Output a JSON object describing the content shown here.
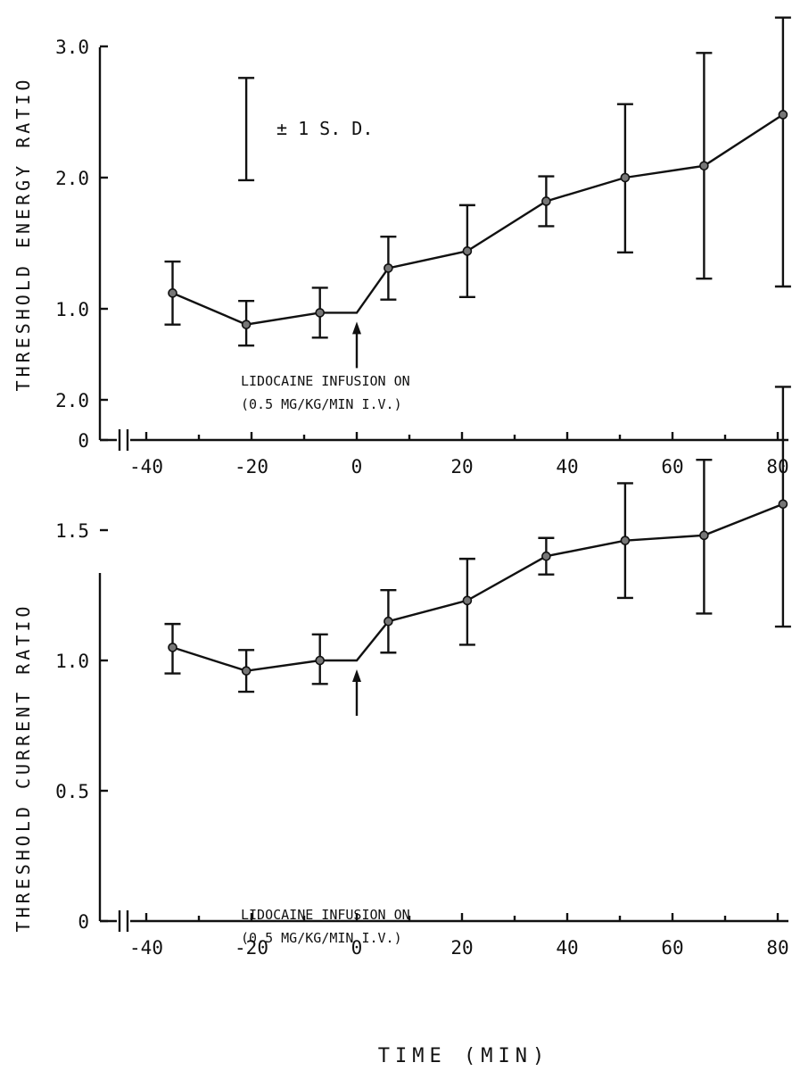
{
  "chart_data": [
    {
      "type": "line",
      "ylabel": "THRESHOLD ENERGY RATIO",
      "xlabel": "",
      "xlim": [
        -45,
        80
      ],
      "ylim": [
        0,
        3.0
      ],
      "x_ticks": [
        "-40",
        "-20",
        "0",
        "20",
        "40",
        "60",
        "80"
      ],
      "y_ticks": [
        "0",
        "1.0",
        "2.0",
        "3.0"
      ],
      "axis_break": true,
      "series": [
        {
          "x": [
            -35,
            -21,
            -7,
            0,
            6,
            21,
            36,
            51,
            66,
            81
          ],
          "y": [
            1.12,
            0.88,
            0.97,
            0.97,
            1.31,
            1.44,
            1.82,
            2.0,
            2.09,
            2.48
          ],
          "err_low": [
            0.88,
            0.72,
            0.78,
            null,
            1.07,
            1.09,
            1.63,
            1.43,
            1.23,
            1.17
          ],
          "err_high": [
            1.36,
            1.06,
            1.16,
            null,
            1.55,
            1.79,
            2.01,
            2.56,
            2.95,
            3.22
          ]
        }
      ],
      "legend": {
        "text": "± 1 S. D.",
        "bar_low": 1.98,
        "bar_high": 2.76,
        "x": -21
      },
      "annotation": {
        "line1": "LIDOCAINE INFUSION ON",
        "line2": "(0.5 MG/KG/MIN  I.V.)",
        "x": 0
      }
    },
    {
      "type": "line",
      "ylabel": "THRESHOLD CURRENT RATIO",
      "xlabel": "TIME (MIN)",
      "xlim": [
        -45,
        80
      ],
      "ylim": [
        0,
        2.0
      ],
      "x_ticks": [
        "-40",
        "-20",
        "0",
        "20",
        "40",
        "60",
        "80"
      ],
      "y_ticks": [
        "0",
        "0.5",
        "1.0",
        "1.5",
        "2.0"
      ],
      "axis_break": true,
      "series": [
        {
          "x": [
            -35,
            -21,
            -7,
            0,
            6,
            21,
            36,
            51,
            66,
            81
          ],
          "y": [
            1.05,
            0.96,
            1.0,
            1.0,
            1.15,
            1.23,
            1.4,
            1.46,
            1.48,
            1.6
          ],
          "err_low": [
            0.95,
            0.88,
            0.91,
            null,
            1.03,
            1.06,
            1.33,
            1.24,
            1.18,
            1.13
          ],
          "err_high": [
            1.14,
            1.04,
            1.1,
            null,
            1.27,
            1.39,
            1.47,
            1.68,
            1.77,
            2.05
          ]
        }
      ],
      "annotation": {
        "line1": "LIDOCAINE INFUSION ON",
        "line2": "(0.5 MG/KG/MIN  I.V.)",
        "x": 0
      }
    }
  ]
}
